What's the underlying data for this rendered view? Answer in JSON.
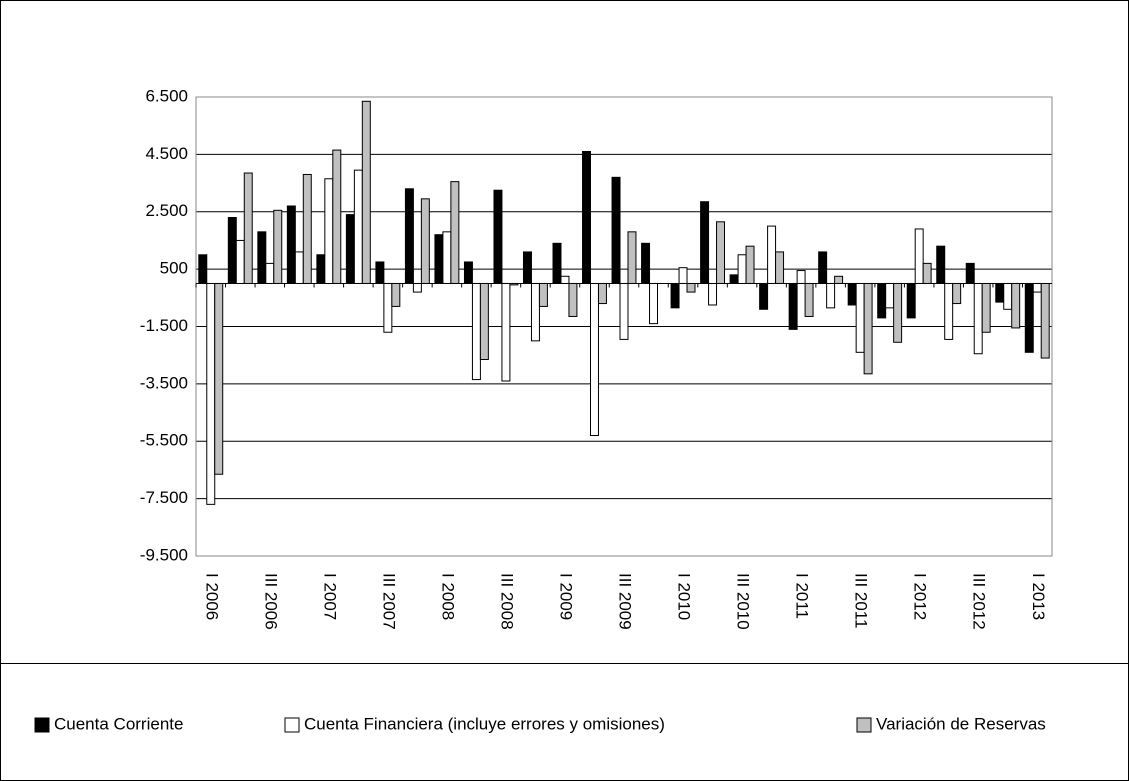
{
  "chart_data": {
    "type": "bar",
    "categories": [
      "I 2006",
      null,
      "III 2006",
      null,
      "I 2007",
      null,
      "III 2007",
      null,
      "I 2008",
      null,
      "III 2008",
      null,
      "I 2009",
      null,
      "III 2009",
      null,
      "I 2010",
      null,
      "III 2010",
      null,
      "I 2011",
      null,
      "III 2011",
      null,
      "I 2012",
      null,
      "III 2012",
      null,
      "I 2013"
    ],
    "series": [
      {
        "name": "Cuenta Corriente",
        "color": "#000000",
        "values": [
          1000,
          2300,
          1800,
          2700,
          1000,
          2400,
          750,
          3300,
          1700,
          750,
          3250,
          1100,
          1400,
          4600,
          3700,
          1400,
          -850,
          2850,
          300,
          -900,
          -1600,
          1100,
          -750,
          -1200,
          -1200,
          1300,
          700,
          -650,
          -2400
        ]
      },
      {
        "name": "Cuenta Financiera (incluye errores y omisiones)",
        "color": "#ffffff",
        "values": [
          -7700,
          1500,
          700,
          1100,
          3650,
          3950,
          -1700,
          -300,
          1800,
          -3350,
          -3400,
          -2000,
          250,
          -5300,
          -1950,
          -1400,
          550,
          -750,
          1000,
          2000,
          450,
          -850,
          -2400,
          -850,
          1900,
          -1950,
          -2450,
          -900,
          -300
        ]
      },
      {
        "name": "Variación de Reservas",
        "color": "#c0c0c0",
        "values": [
          -6650,
          3850,
          2550,
          3800,
          4650,
          6350,
          -800,
          2950,
          3550,
          -2650,
          -50,
          -800,
          -1150,
          -700,
          1800,
          0,
          -300,
          2150,
          1300,
          1100,
          -1150,
          250,
          -3150,
          -2050,
          700,
          -700,
          -1700,
          -1550,
          -2600
        ]
      }
    ],
    "ylim": [
      -9500,
      6500
    ],
    "yticks": [
      {
        "value": -9500,
        "label": "-9.500"
      },
      {
        "value": -7500,
        "label": "-7.500"
      },
      {
        "value": -5500,
        "label": "-5.500"
      },
      {
        "value": -3500,
        "label": "-3.500"
      },
      {
        "value": -1500,
        "label": "-1.500"
      },
      {
        "value": 500,
        "label": "500"
      },
      {
        "value": 2500,
        "label": "2.500"
      },
      {
        "value": 4500,
        "label": "4.500"
      },
      {
        "value": 6500,
        "label": "6.500"
      }
    ],
    "grid": true,
    "legend": "bottom"
  }
}
